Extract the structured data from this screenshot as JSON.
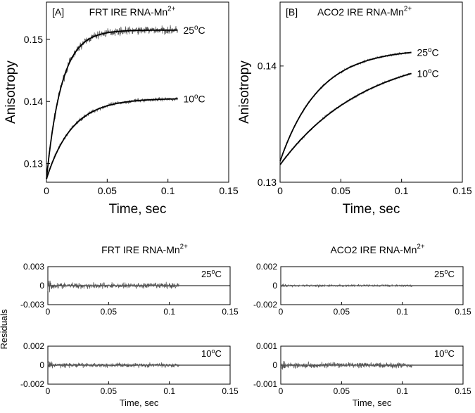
{
  "chart_data": [
    {
      "id": "A",
      "type": "line",
      "panel_label": "[A]",
      "title": "FRT IRE RNA-Mn",
      "title_sup": "2+",
      "xlabel": "Time, sec",
      "ylabel": "Anisotropy",
      "xlim": [
        0,
        0.15
      ],
      "ylim": [
        0.127,
        0.156
      ],
      "xticks": [
        0,
        0.05,
        0.1,
        0.15
      ],
      "xtick_labels": [
        "0",
        "0.05",
        "0.1",
        "0.15"
      ],
      "yticks": [
        0.13,
        0.14,
        0.15
      ],
      "ytick_labels": [
        "0.13",
        "0.14",
        "0.15"
      ],
      "series": [
        {
          "label": "25°C",
          "y0": 0.1275,
          "yinf": 0.1515,
          "tau": 0.0125,
          "noise": 0.0012
        },
        {
          "label": "10°C",
          "y0": 0.1275,
          "yinf": 0.1405,
          "tau": 0.021,
          "noise": 0.0006
        }
      ]
    },
    {
      "id": "B",
      "type": "line",
      "panel_label": "[B]",
      "title": "ACO2 IRE RNA-Mn",
      "title_sup": "2+",
      "xlabel": "Time, sec",
      "ylabel": "Anisotropy",
      "xlim": [
        0,
        0.15
      ],
      "ylim": [
        0.13,
        0.1455
      ],
      "xticks": [
        0,
        0.05,
        0.1,
        0.15
      ],
      "xtick_labels": [
        "0",
        "0.05",
        "0.1",
        "0.15"
      ],
      "yticks": [
        0.13,
        0.14
      ],
      "ytick_labels": [
        "0.13",
        "0.14"
      ],
      "series": [
        {
          "label": "25°C",
          "y0": 0.1318,
          "yinf": 0.1415,
          "tau": 0.032,
          "noise": 0.0002
        },
        {
          "label": "10°C",
          "y0": 0.1315,
          "yinf": 0.1415,
          "tau": 0.07,
          "noise": 0.0002
        }
      ]
    },
    {
      "id": "C",
      "type": "line",
      "group_title": "FRT IRE RNA-Mn",
      "group_title_sup": "2+",
      "label": "25°C",
      "xlabel": "",
      "ylabel": "",
      "xlim": [
        0,
        0.15
      ],
      "ylim": [
        -0.003,
        0.003
      ],
      "xticks": [
        0,
        0.05,
        0.1,
        0.15
      ],
      "xtick_labels": [
        "0",
        "0.05",
        "0.1",
        "0.15"
      ],
      "yticks": [
        -0.003,
        0,
        0.003
      ],
      "ytick_labels": [
        "-0.003",
        "0",
        "0.003"
      ],
      "noise": 0.0008
    },
    {
      "id": "D",
      "type": "line",
      "group_title": "ACO2 IRE RNA-Mn",
      "group_title_sup": "2+",
      "label": "25°C",
      "xlabel": "",
      "ylabel": "",
      "xlim": [
        0,
        0.15
      ],
      "ylim": [
        -0.002,
        0.002
      ],
      "xticks": [
        0,
        0.05,
        0.1,
        0.15
      ],
      "xtick_labels": [
        "0",
        "0.05",
        "0.1",
        "0.15"
      ],
      "yticks": [
        -0.002,
        0,
        0.002
      ],
      "ytick_labels": [
        "-0.002",
        "0",
        "0.002"
      ],
      "noise": 0.0002
    },
    {
      "id": "E",
      "type": "line",
      "label": "10°C",
      "xlabel": "Time, sec",
      "ylabel": "",
      "xlim": [
        0,
        0.15
      ],
      "ylim": [
        -0.002,
        0.002
      ],
      "xticks": [
        0,
        0.05,
        0.1,
        0.15
      ],
      "xtick_labels": [
        "0",
        "0.05",
        "0.1",
        "0.15"
      ],
      "yticks": [
        -0.002,
        0,
        0.002
      ],
      "ytick_labels": [
        "-0.002",
        "0",
        "0.002"
      ],
      "noise": 0.0004
    },
    {
      "id": "F",
      "type": "line",
      "label": "10°C",
      "xlabel": "Time, sec",
      "ylabel": "",
      "xlim": [
        0,
        0.15
      ],
      "ylim": [
        -0.001,
        0.001
      ],
      "xticks": [
        0,
        0.05,
        0.1,
        0.15
      ],
      "xtick_labels": [
        "0",
        "0.05",
        "0.1",
        "0.15"
      ],
      "yticks": [
        -0.001,
        0,
        0.001
      ],
      "ytick_labels": [
        "-0.001",
        "0",
        "0.001"
      ],
      "noise": 0.00025
    }
  ],
  "residuals_ylabel": "Residuals",
  "time_xlabel": "Time, sec",
  "x_data_end": 0.108,
  "colors": {
    "data": "#555555",
    "fit": "#000000",
    "axis": "#000000"
  }
}
